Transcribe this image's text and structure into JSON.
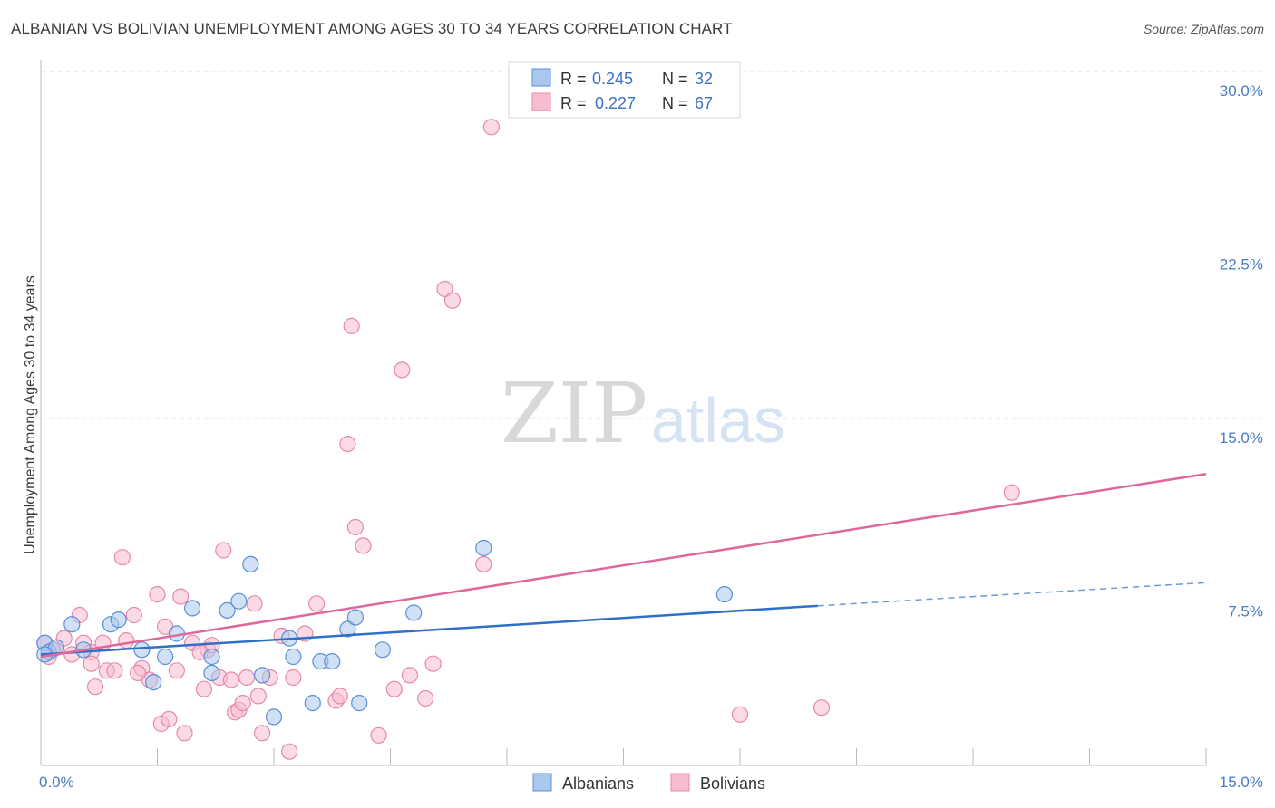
{
  "title": "ALBANIAN VS BOLIVIAN UNEMPLOYMENT AMONG AGES 30 TO 34 YEARS CORRELATION CHART",
  "source": "Source: ZipAtlas.com",
  "watermark": {
    "zip": "ZIP",
    "atlas": "atlas"
  },
  "colors": {
    "albanians_fill": "#aac8ee",
    "albanians_stroke": "#5b8fd4",
    "albanians_line": "#2f6fc8",
    "bolivians_fill": "#f7bcd0",
    "bolivians_stroke": "#e58aa9",
    "bolivians_line": "#e0679a",
    "tick_text": "#4a7cc4",
    "grid": "#dddddd"
  },
  "legend": {
    "rows": [
      {
        "r_label": "R =",
        "r_value": "0.245",
        "n_label": "N =",
        "n_value": "32"
      },
      {
        "r_label": "R =",
        "r_value": "0.227",
        "n_label": "N =",
        "n_value": "67"
      }
    ]
  },
  "chart_data": {
    "type": "scatter",
    "title": "ALBANIAN VS BOLIVIAN UNEMPLOYMENT AMONG AGES 30 TO 34 YEARS CORRELATION CHART",
    "xlabel": "",
    "ylabel": "Unemployment Among Ages 30 to 34 years",
    "xlim": [
      0,
      15
    ],
    "ylim": [
      0,
      30
    ],
    "x_tick_labels": [
      "0.0%",
      "15.0%"
    ],
    "y_ticks": [
      7.5,
      15.0,
      22.5,
      30.0
    ],
    "y_tick_labels": [
      "7.5%",
      "15.0%",
      "22.5%",
      "30.0%"
    ],
    "grid": true,
    "legend_placement": "top-center",
    "series": [
      {
        "name": "Albanians",
        "points": [
          [
            0.05,
            5.3
          ],
          [
            0.1,
            4.9
          ],
          [
            0.2,
            5.1
          ],
          [
            0.4,
            6.1
          ],
          [
            0.55,
            5.0
          ],
          [
            0.9,
            6.1
          ],
          [
            1.0,
            6.3
          ],
          [
            1.3,
            5.0
          ],
          [
            1.45,
            3.6
          ],
          [
            1.6,
            4.7
          ],
          [
            1.75,
            5.7
          ],
          [
            1.95,
            6.8
          ],
          [
            2.2,
            4.7
          ],
          [
            2.2,
            4.0
          ],
          [
            2.4,
            6.7
          ],
          [
            2.55,
            7.1
          ],
          [
            2.7,
            8.7
          ],
          [
            2.85,
            3.9
          ],
          [
            3.0,
            2.1
          ],
          [
            3.2,
            5.5
          ],
          [
            3.25,
            4.7
          ],
          [
            3.5,
            2.7
          ],
          [
            3.6,
            4.5
          ],
          [
            3.75,
            4.5
          ],
          [
            3.95,
            5.9
          ],
          [
            4.05,
            6.4
          ],
          [
            4.1,
            2.7
          ],
          [
            4.4,
            5.0
          ],
          [
            4.8,
            6.6
          ],
          [
            5.7,
            9.4
          ],
          [
            8.8,
            7.4
          ],
          [
            0.05,
            4.8
          ]
        ],
        "trend": {
          "x_start": 0,
          "y_start": 4.8,
          "x_solid_end": 10.0,
          "y_solid_end": 6.9,
          "x_end": 15.0,
          "y_end": 7.9
        }
      },
      {
        "name": "Bolivians",
        "points": [
          [
            0.05,
            5.3
          ],
          [
            0.1,
            4.7
          ],
          [
            0.2,
            5.1
          ],
          [
            0.3,
            5.5
          ],
          [
            0.4,
            4.8
          ],
          [
            0.5,
            6.5
          ],
          [
            0.55,
            5.3
          ],
          [
            0.65,
            4.9
          ],
          [
            0.65,
            4.4
          ],
          [
            0.7,
            3.4
          ],
          [
            0.8,
            5.3
          ],
          [
            0.85,
            4.1
          ],
          [
            0.95,
            4.1
          ],
          [
            1.05,
            9.0
          ],
          [
            1.1,
            5.4
          ],
          [
            1.2,
            6.5
          ],
          [
            1.3,
            4.2
          ],
          [
            1.4,
            3.7
          ],
          [
            1.5,
            7.4
          ],
          [
            1.55,
            1.8
          ],
          [
            1.6,
            6.0
          ],
          [
            1.65,
            2.0
          ],
          [
            1.75,
            4.1
          ],
          [
            1.8,
            7.3
          ],
          [
            1.85,
            1.4
          ],
          [
            1.95,
            5.3
          ],
          [
            2.1,
            3.3
          ],
          [
            2.15,
            5.0
          ],
          [
            2.2,
            5.2
          ],
          [
            2.3,
            3.8
          ],
          [
            2.35,
            9.3
          ],
          [
            2.45,
            3.7
          ],
          [
            2.5,
            2.3
          ],
          [
            2.55,
            2.4
          ],
          [
            2.6,
            2.7
          ],
          [
            2.65,
            3.8
          ],
          [
            2.75,
            7.0
          ],
          [
            2.8,
            3.0
          ],
          [
            2.85,
            1.4
          ],
          [
            2.95,
            3.8
          ],
          [
            3.1,
            5.6
          ],
          [
            3.2,
            0.6
          ],
          [
            3.25,
            3.8
          ],
          [
            3.4,
            5.7
          ],
          [
            3.55,
            7.0
          ],
          [
            3.8,
            2.8
          ],
          [
            3.85,
            3.0
          ],
          [
            3.95,
            13.9
          ],
          [
            4.0,
            19.0
          ],
          [
            4.05,
            10.3
          ],
          [
            4.15,
            9.5
          ],
          [
            4.35,
            1.3
          ],
          [
            4.55,
            3.3
          ],
          [
            4.65,
            17.1
          ],
          [
            4.75,
            3.9
          ],
          [
            4.95,
            2.9
          ],
          [
            5.05,
            4.4
          ],
          [
            5.2,
            20.6
          ],
          [
            5.3,
            20.1
          ],
          [
            5.7,
            8.7
          ],
          [
            5.8,
            27.6
          ],
          [
            9.0,
            2.2
          ],
          [
            10.05,
            2.5
          ],
          [
            12.5,
            11.8
          ],
          [
            0.15,
            5.0
          ],
          [
            1.25,
            4.0
          ],
          [
            2.05,
            4.9
          ]
        ],
        "trend": {
          "x_start": 0,
          "y_start": 4.7,
          "x_end": 15.0,
          "y_end": 12.6
        }
      }
    ]
  },
  "bottom_legend": {
    "albanians": "Albanians",
    "bolivians": "Bolivians"
  }
}
